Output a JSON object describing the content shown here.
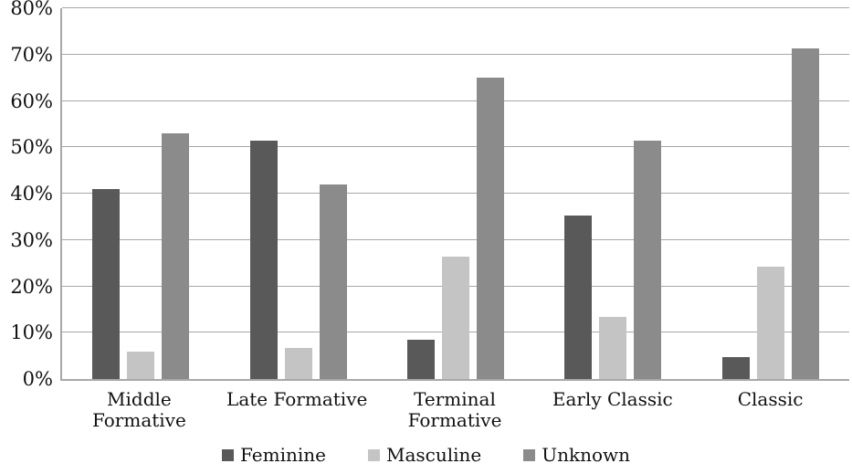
{
  "chart_data": {
    "type": "bar",
    "title": "",
    "categories": [
      "Middle Formative",
      "Late Formative",
      "Terminal\nFormative",
      "Early Classic",
      "Classic"
    ],
    "series": [
      {
        "name": "Feminine",
        "color": "#595959",
        "values": [
          41.0,
          51.5,
          8.5,
          35.3,
          4.7
        ]
      },
      {
        "name": "Masculine",
        "color": "#c4c4c4",
        "values": [
          6.0,
          6.8,
          26.5,
          13.4,
          24.2
        ]
      },
      {
        "name": "Unknown",
        "color": "#8b8b8b",
        "values": [
          53.0,
          42.0,
          65.0,
          51.5,
          71.3
        ]
      }
    ],
    "ylim": [
      0,
      80
    ],
    "y_tick_step": 10,
    "y_tick_labels": [
      "0%",
      "10%",
      "20%",
      "30%",
      "40%",
      "50%",
      "60%",
      "70%",
      "80%"
    ],
    "grid": true,
    "legend_position": "bottom",
    "colors": {
      "gridline": "#a8a8a8",
      "axis": "#a8a8a8",
      "background": "#ffffff",
      "text": "#111111"
    }
  }
}
